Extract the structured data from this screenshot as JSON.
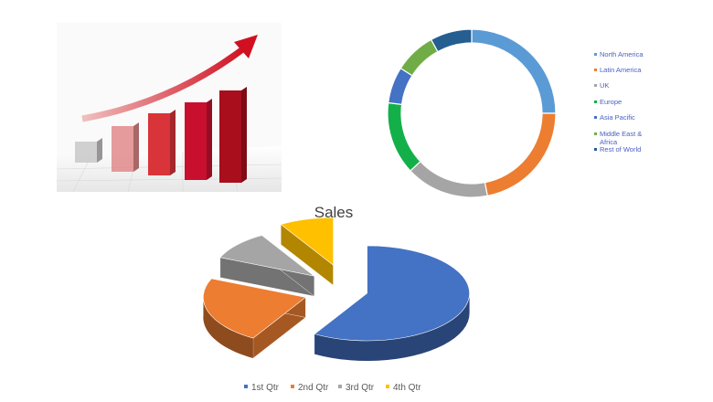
{
  "growth_image": {
    "icon": "bar-chart-growth-arrow-illustration",
    "colors": [
      "#c8c8c8",
      "#e08a8a",
      "#d9343a",
      "#c8102e",
      "#a80e1c"
    ]
  },
  "chart_data": [
    {
      "type": "pie",
      "variant": "donut",
      "title": "",
      "categories": [
        "North America",
        "Latin America",
        "UK",
        "Europe",
        "Asia Pacific",
        "Middle East & Africa",
        "Rest of World"
      ],
      "values": [
        25,
        22,
        16,
        14,
        7,
        8,
        8
      ],
      "unit": "percent",
      "colors": [
        "#5b9bd5",
        "#ed7d31",
        "#a5a5a5",
        "#13b04a",
        "#4472c4",
        "#70ad47",
        "#255e91"
      ],
      "legend": "right"
    },
    {
      "type": "pie",
      "variant": "3d-exploded",
      "title": "Sales",
      "categories": [
        "1st Qtr",
        "2nd Qtr",
        "3rd Qtr",
        "4th Qtr"
      ],
      "values": [
        8.2,
        3.2,
        1.4,
        1.2
      ],
      "colors": [
        "#4472c4",
        "#ed7d31",
        "#a5a5a5",
        "#ffc000"
      ],
      "legend": "bottom"
    }
  ]
}
